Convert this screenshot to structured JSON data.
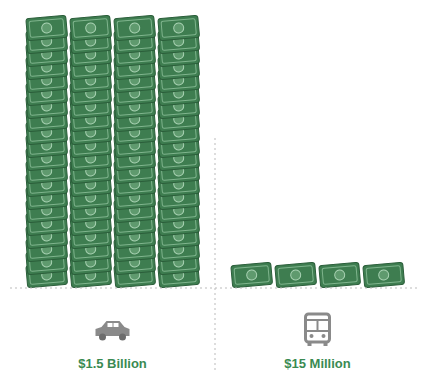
{
  "chart_data": {
    "type": "bar",
    "categories": [
      null,
      null
    ],
    "values": [
      1500000000,
      15000000
    ],
    "value_labels": [
      "$1.5 Billion",
      "$15 Million"
    ],
    "color": "#3e7d50",
    "ylim": [
      0,
      1500000000
    ],
    "yticks": [
      0,
      1500000000
    ],
    "tick_labels": false,
    "data_labels": true,
    "grid": false
  }
}
